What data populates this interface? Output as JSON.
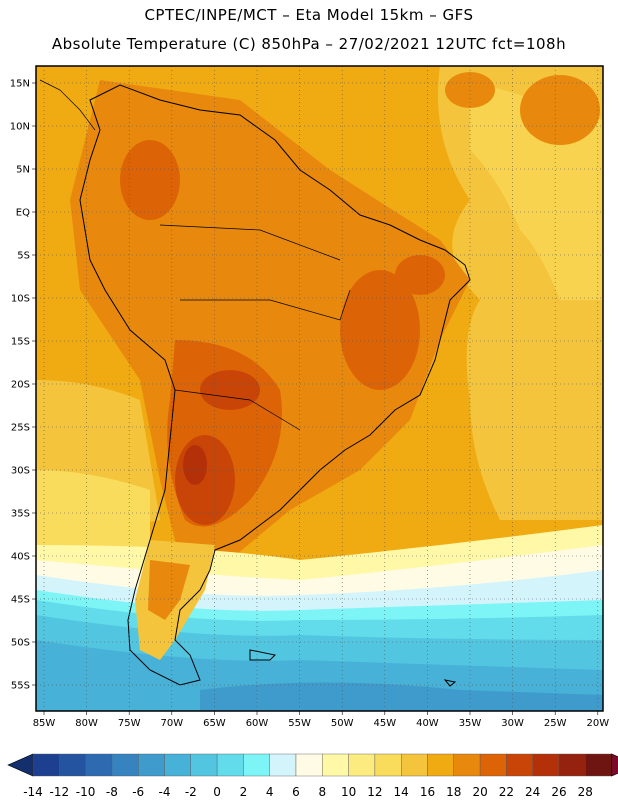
{
  "title_line1": "CPTEC/INPE/MCT –  Eta Model 15km – GFS",
  "title_line2": "Absolute Temperature (C) 850hPa – 27/02/2021 12UTC fct=108h",
  "lat_labels": [
    "15N",
    "10N",
    "5N",
    "EQ",
    "5S",
    "10S",
    "15S",
    "20S",
    "25S",
    "30S",
    "35S",
    "40S",
    "45S",
    "50S",
    "55S"
  ],
  "lon_labels": [
    "85W",
    "80W",
    "75W",
    "70W",
    "65W",
    "60W",
    "55W",
    "50W",
    "45W",
    "40W",
    "35W",
    "30W",
    "25W",
    "20W"
  ],
  "colorbar": {
    "labels": [
      "-14",
      "-12",
      "-10",
      "-8",
      "-6",
      "-4",
      "-2",
      "0",
      "2",
      "4",
      "6",
      "8",
      "10",
      "12",
      "14",
      "16",
      "18",
      "20",
      "22",
      "24",
      "26",
      "28"
    ],
    "colors": [
      "#1c3f8f",
      "#24549f",
      "#2d6aaf",
      "#3783bf",
      "#3f9bcc",
      "#47b1d7",
      "#52c6e1",
      "#62dbea",
      "#7df5f6",
      "#d3f4fb",
      "#fffbe4",
      "#fff8a6",
      "#fcec80",
      "#f9dc5c",
      "#f4c53c",
      "#f0aa12",
      "#e8890d",
      "#dd6406",
      "#c94507",
      "#b43009",
      "#94220f",
      "#6e1511"
    ],
    "low_color": "#132f6e",
    "high_color": "#7a0a2a"
  }
}
